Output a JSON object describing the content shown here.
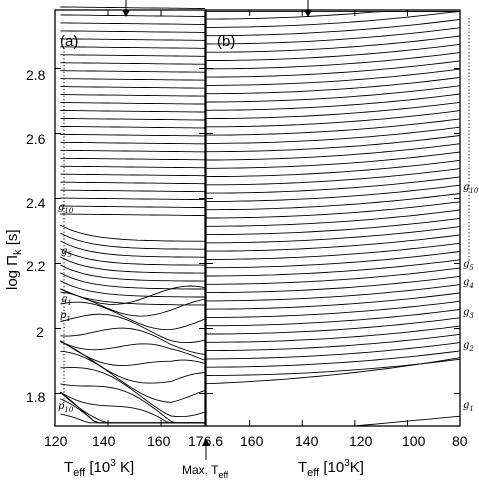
{
  "chart_data": [
    {
      "panel": "(a)",
      "type": "line",
      "xlabel": "T_eff [10^3 K]",
      "ylabel": "log Π_k [s]",
      "xlim": [
        120,
        176.6
      ],
      "ylim": [
        1.7,
        2.98
      ],
      "x_ticks": [
        "120",
        "140",
        "160",
        "176.6"
      ],
      "y_ticks": [
        "1.8",
        "2",
        "2.2",
        "2.4",
        "2.6",
        "2.8"
      ],
      "annotation": "Max. T_eff",
      "mode_labels": [
        "g10",
        "g5",
        "g1",
        "p1",
        "p10"
      ],
      "description": "Periods of successive p- and g-modes versus effective temperature (increasing Teff); g-mode curves are flat at high log Π and p-mode curves decline toward higher Teff",
      "series_count": 52
    },
    {
      "panel": "(b)",
      "type": "line",
      "xlabel": "T_eff [10^3 K]",
      "xlim": [
        176.6,
        80
      ],
      "ylim": [
        1.7,
        2.98
      ],
      "x_ticks": [
        "160",
        "140",
        "120",
        "100",
        "80"
      ],
      "mode_labels": [
        "g10",
        "g5",
        "g4",
        "g3",
        "g2",
        "g1"
      ],
      "description": "Periods of g-modes versus decreasing effective temperature; curves rise slowly as the star cools",
      "series_count": 46
    }
  ],
  "labels": {
    "panel_a": "(a)",
    "panel_b": "(b)",
    "y_title_main": "log Π",
    "y_title_sub": "k",
    "y_title_unit": " [s]",
    "x_title_a": "T",
    "x_title_a_sub": "eff",
    "x_title_a_rest": " [10",
    "x_title_a_sup": "3",
    "x_title_a_end": " K]",
    "x_title_b": "T",
    "x_title_b_sub": "eff",
    "x_title_b_rest": " [10",
    "x_title_b_sup": "3",
    "x_title_b_end": "K]",
    "max_teff_main": "Max. T",
    "max_teff_sub": "eff",
    "y_ticks": [
      "1.8",
      "2",
      "2.2",
      "2.4",
      "2.6",
      "2.8"
    ],
    "x_ticks_a": [
      "120",
      "140",
      "160",
      "176.6"
    ],
    "x_ticks_b": [
      "160",
      "140",
      "120",
      "100",
      "80"
    ],
    "modes_a": [
      {
        "main": "g",
        "sub": "10"
      },
      {
        "main": "g",
        "sub": "5"
      },
      {
        "main": "g",
        "sub": "1"
      },
      {
        "main": "p",
        "sub": "1"
      },
      {
        "main": "p",
        "sub": "10"
      }
    ],
    "modes_b": [
      {
        "main": "g",
        "sub": "10"
      },
      {
        "main": "g",
        "sub": "5"
      },
      {
        "main": "g",
        "sub": "4"
      },
      {
        "main": "g",
        "sub": "3"
      },
      {
        "main": "g",
        "sub": "2"
      },
      {
        "main": "g",
        "sub": "1"
      }
    ]
  }
}
